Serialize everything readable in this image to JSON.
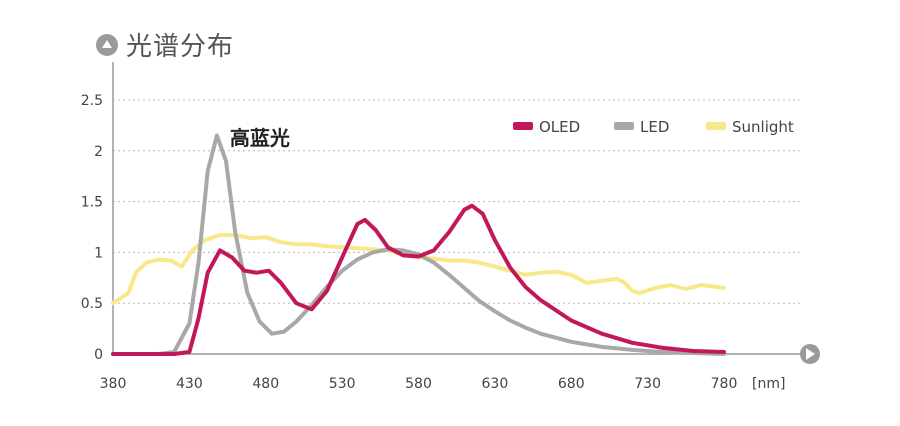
{
  "chart_data": {
    "type": "line",
    "title": "光谱分布",
    "xunit": "[nm]",
    "xlim": [
      380,
      780
    ],
    "ylim": [
      0,
      2.5
    ],
    "x_ticks": [
      "380",
      "430",
      "480",
      "530",
      "580",
      "630",
      "680",
      "730",
      "780"
    ],
    "y_ticks": [
      "0",
      "0.5",
      "1",
      "1.5",
      "2",
      "2.5"
    ],
    "grid": true,
    "legend_position": "top-right",
    "annotation": {
      "text": "高蓝光",
      "x": 450,
      "y": 2.15
    },
    "series": [
      {
        "name": "OLED",
        "color": "#c2185b",
        "points": [
          [
            380,
            0
          ],
          [
            420,
            0
          ],
          [
            430,
            0.02
          ],
          [
            436,
            0.35
          ],
          [
            442,
            0.8
          ],
          [
            450,
            1.02
          ],
          [
            458,
            0.95
          ],
          [
            466,
            0.82
          ],
          [
            474,
            0.8
          ],
          [
            482,
            0.82
          ],
          [
            490,
            0.7
          ],
          [
            500,
            0.5
          ],
          [
            510,
            0.44
          ],
          [
            520,
            0.62
          ],
          [
            530,
            0.95
          ],
          [
            540,
            1.28
          ],
          [
            545,
            1.32
          ],
          [
            552,
            1.22
          ],
          [
            560,
            1.05
          ],
          [
            570,
            0.97
          ],
          [
            580,
            0.96
          ],
          [
            590,
            1.02
          ],
          [
            600,
            1.2
          ],
          [
            610,
            1.42
          ],
          [
            615,
            1.46
          ],
          [
            622,
            1.38
          ],
          [
            630,
            1.12
          ],
          [
            640,
            0.85
          ],
          [
            650,
            0.66
          ],
          [
            660,
            0.53
          ],
          [
            680,
            0.33
          ],
          [
            700,
            0.2
          ],
          [
            720,
            0.11
          ],
          [
            740,
            0.06
          ],
          [
            760,
            0.03
          ],
          [
            780,
            0.02
          ]
        ]
      },
      {
        "name": "LED",
        "color": "#a8a8a8",
        "points": [
          [
            380,
            0
          ],
          [
            410,
            0
          ],
          [
            420,
            0.02
          ],
          [
            430,
            0.3
          ],
          [
            436,
            0.9
          ],
          [
            442,
            1.8
          ],
          [
            448,
            2.15
          ],
          [
            454,
            1.9
          ],
          [
            460,
            1.2
          ],
          [
            468,
            0.6
          ],
          [
            476,
            0.32
          ],
          [
            484,
            0.2
          ],
          [
            492,
            0.22
          ],
          [
            500,
            0.32
          ],
          [
            510,
            0.48
          ],
          [
            520,
            0.66
          ],
          [
            530,
            0.82
          ],
          [
            540,
            0.93
          ],
          [
            550,
            1
          ],
          [
            560,
            1.03
          ],
          [
            570,
            1.02
          ],
          [
            580,
            0.98
          ],
          [
            590,
            0.9
          ],
          [
            600,
            0.78
          ],
          [
            610,
            0.65
          ],
          [
            620,
            0.52
          ],
          [
            630,
            0.42
          ],
          [
            640,
            0.33
          ],
          [
            650,
            0.26
          ],
          [
            660,
            0.2
          ],
          [
            680,
            0.12
          ],
          [
            700,
            0.07
          ],
          [
            720,
            0.04
          ],
          [
            740,
            0.02
          ],
          [
            760,
            0.01
          ],
          [
            780,
            0
          ]
        ]
      },
      {
        "name": "Sunlight",
        "color": "#f7e98a",
        "points": [
          [
            380,
            0.5
          ],
          [
            390,
            0.6
          ],
          [
            395,
            0.8
          ],
          [
            402,
            0.9
          ],
          [
            410,
            0.93
          ],
          [
            418,
            0.92
          ],
          [
            425,
            0.86
          ],
          [
            432,
            1.02
          ],
          [
            440,
            1.12
          ],
          [
            450,
            1.17
          ],
          [
            460,
            1.17
          ],
          [
            470,
            1.14
          ],
          [
            480,
            1.15
          ],
          [
            490,
            1.1
          ],
          [
            500,
            1.08
          ],
          [
            510,
            1.08
          ],
          [
            520,
            1.06
          ],
          [
            530,
            1.05
          ],
          [
            540,
            1.04
          ],
          [
            550,
            1.03
          ],
          [
            560,
            1.02
          ],
          [
            570,
            0.98
          ],
          [
            580,
            0.95
          ],
          [
            590,
            0.94
          ],
          [
            600,
            0.92
          ],
          [
            610,
            0.92
          ],
          [
            620,
            0.9
          ],
          [
            630,
            0.86
          ],
          [
            640,
            0.82
          ],
          [
            650,
            0.78
          ],
          [
            660,
            0.8
          ],
          [
            670,
            0.81
          ],
          [
            680,
            0.78
          ],
          [
            690,
            0.7
          ],
          [
            700,
            0.72
          ],
          [
            710,
            0.74
          ],
          [
            715,
            0.7
          ],
          [
            720,
            0.62
          ],
          [
            725,
            0.6
          ],
          [
            735,
            0.65
          ],
          [
            745,
            0.68
          ],
          [
            755,
            0.64
          ],
          [
            765,
            0.68
          ],
          [
            775,
            0.66
          ],
          [
            780,
            0.65
          ]
        ]
      }
    ]
  }
}
